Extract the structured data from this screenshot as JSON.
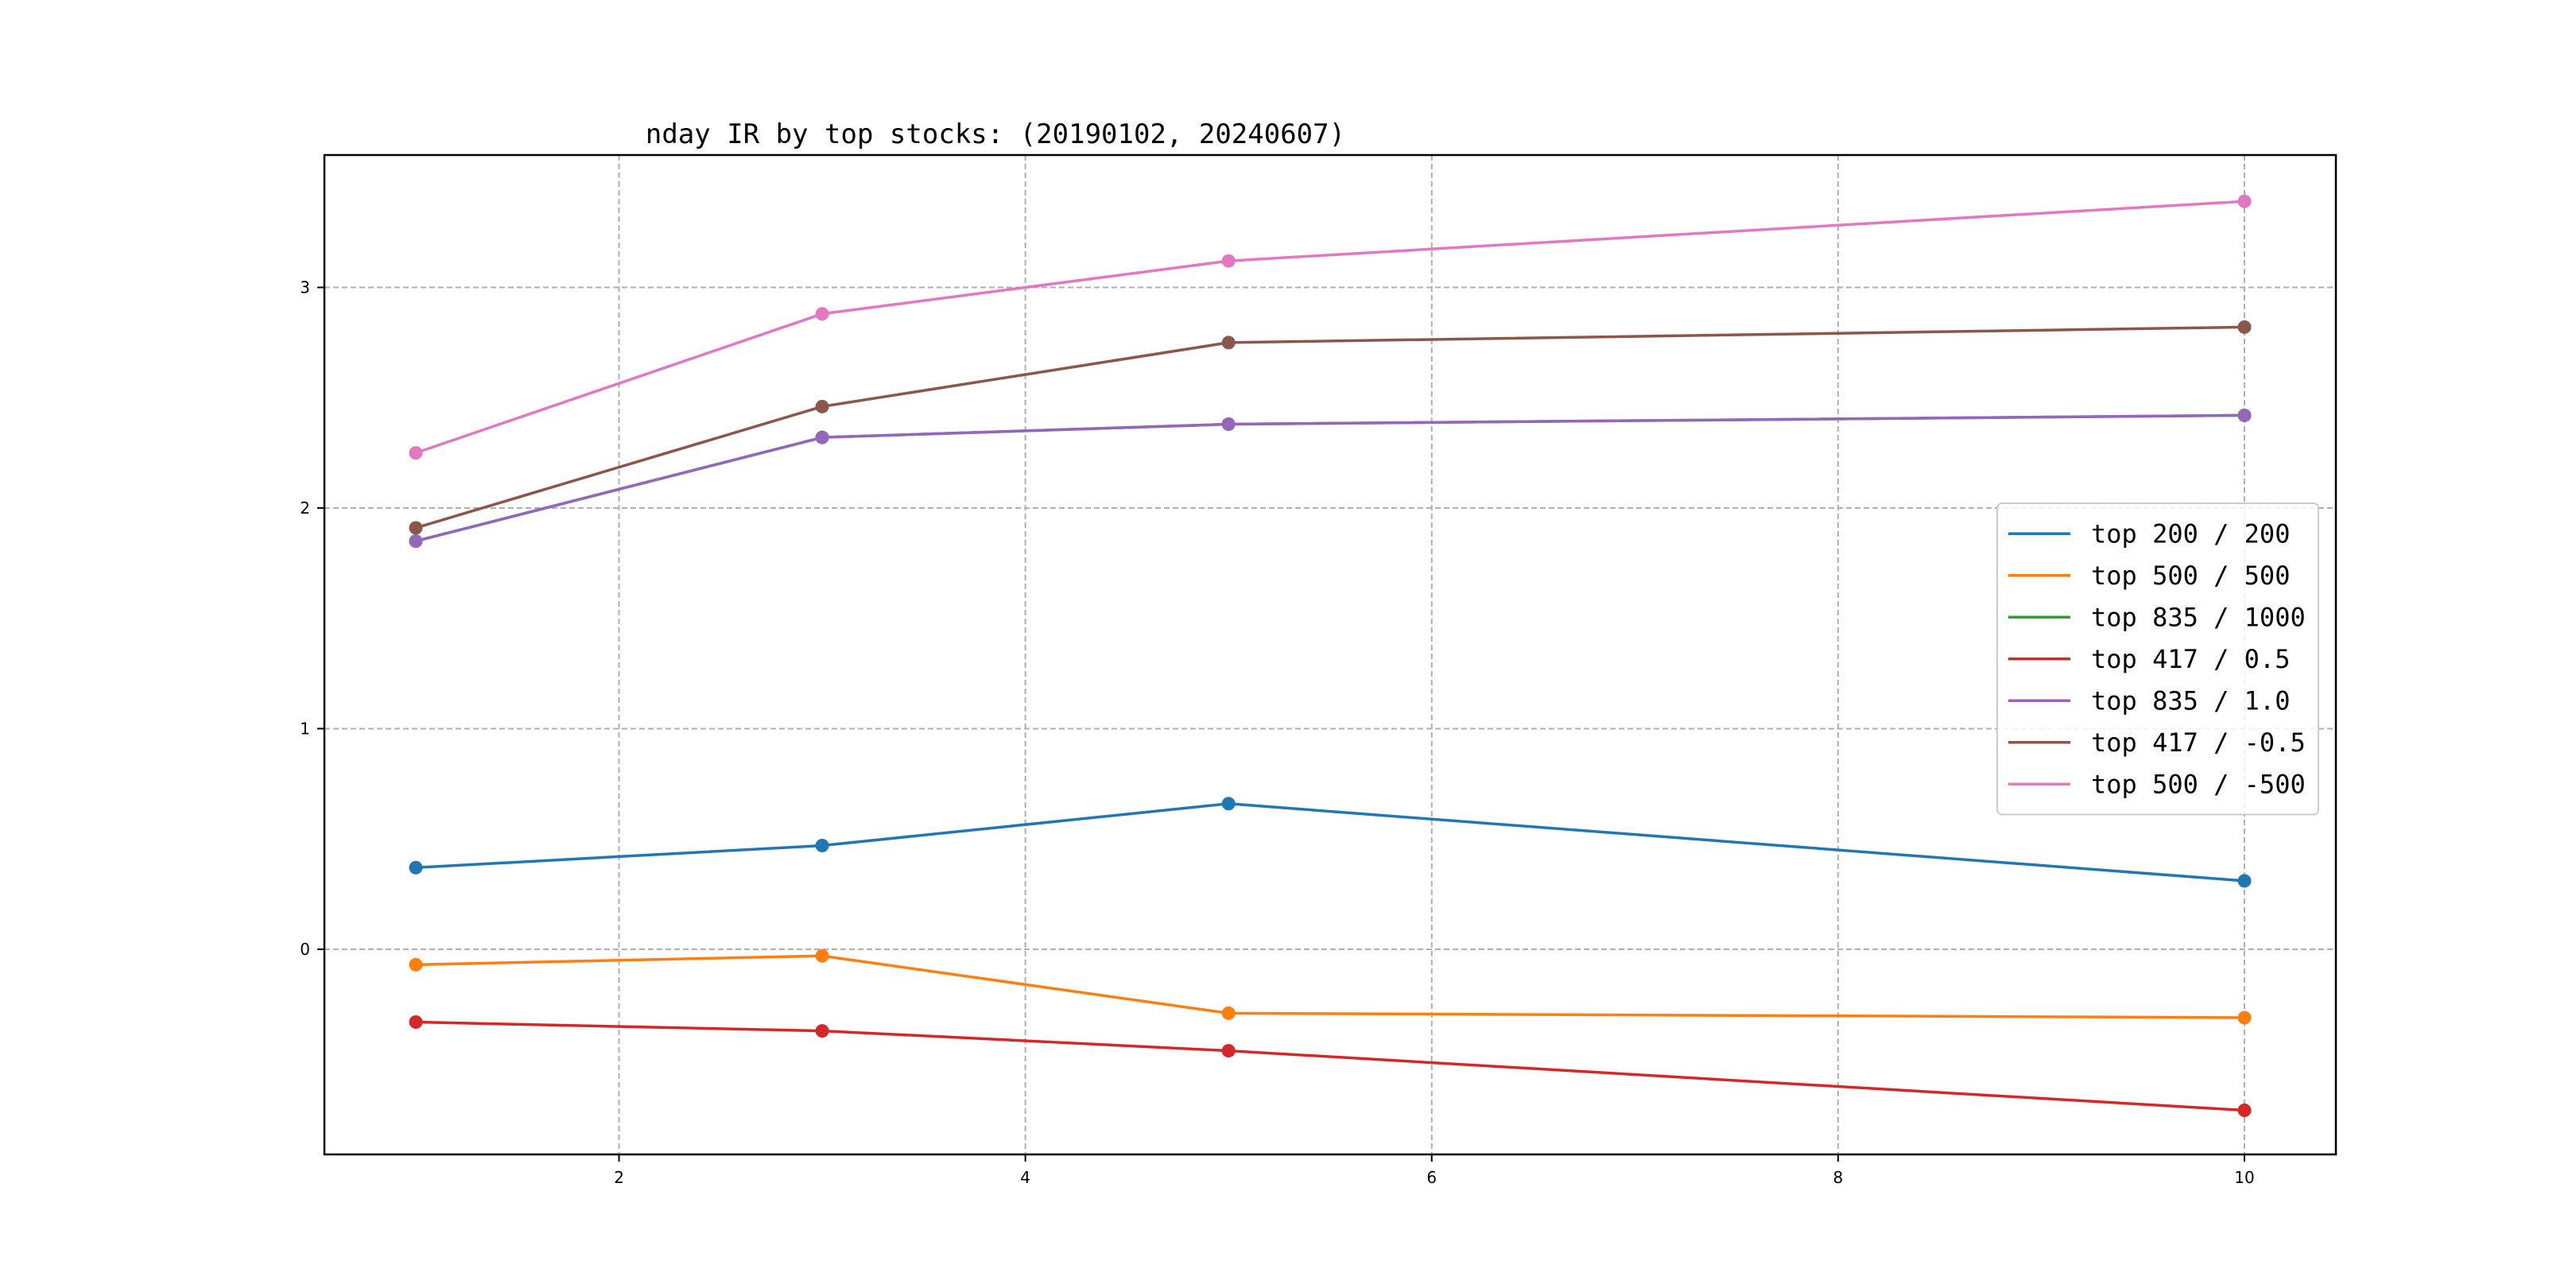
{
  "chart_data": {
    "type": "line",
    "title": "nday IR by top stocks: (20190102, 20240607)",
    "xlabel": "",
    "ylabel": "",
    "x": [
      1,
      3,
      5,
      10
    ],
    "xlim": [
      0.55,
      10.45
    ],
    "ylim": [
      -0.93,
      3.6
    ],
    "xticks": [
      2,
      4,
      6,
      8,
      10
    ],
    "yticks": [
      0,
      1,
      2,
      3
    ],
    "grid": true,
    "legend_position": "center-right",
    "series": [
      {
        "name": "top 200 / 200",
        "color": "#1f77b4",
        "values": [
          0.37,
          0.47,
          0.66,
          0.31
        ]
      },
      {
        "name": "top 500 / 500",
        "color": "#ff7f0e",
        "values": [
          -0.07,
          -0.03,
          -0.29,
          -0.31
        ]
      },
      {
        "name": "top 835 / 1000",
        "color": "#2ca02c",
        "values": [
          1.85,
          2.32,
          2.38,
          2.42
        ]
      },
      {
        "name": "top 417 / 0.5",
        "color": "#d62728",
        "values": [
          -0.33,
          -0.37,
          -0.46,
          -0.73
        ]
      },
      {
        "name": "top 835 / 1.0",
        "color": "#9467bd",
        "values": [
          1.85,
          2.32,
          2.38,
          2.42
        ]
      },
      {
        "name": "top 417 / -0.5",
        "color": "#8c564b",
        "values": [
          1.91,
          2.46,
          2.75,
          2.82
        ]
      },
      {
        "name": "top 500 / -500",
        "color": "#e377c2",
        "values": [
          2.25,
          2.88,
          3.12,
          3.39
        ]
      }
    ]
  }
}
